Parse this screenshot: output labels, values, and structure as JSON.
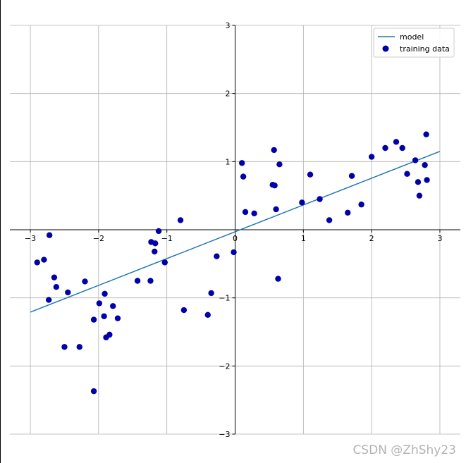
{
  "chart_data": {
    "type": "scatter",
    "title": "",
    "xlabel": "",
    "ylabel": "",
    "xlim": [
      -3.3,
      3.3
    ],
    "ylim": [
      -3,
      3
    ],
    "xticks": [
      -3,
      -2,
      -1,
      0,
      1,
      2,
      3
    ],
    "yticks": [
      -3,
      -2,
      -1,
      0,
      1,
      2,
      3
    ],
    "x_tick_labels": [
      "−3",
      "−2",
      "−1",
      "0",
      "1",
      "2",
      "3"
    ],
    "y_tick_labels": [
      "−3",
      "−2",
      "−1",
      "0",
      "1",
      "2",
      "3"
    ],
    "grid": true,
    "spines": "centered",
    "legend": {
      "position": "top-right",
      "entries": [
        "model",
        "training data"
      ]
    },
    "colors": {
      "model": "#1f77b4",
      "training_data": "#0000aa",
      "grid": "#b0b0b0"
    },
    "series": [
      {
        "name": "model",
        "kind": "line",
        "x": [
          -3,
          3
        ],
        "y": [
          -1.21,
          1.15
        ]
      },
      {
        "name": "training data",
        "kind": "scatter",
        "x": [
          -2.9,
          -2.8,
          -2.73,
          -2.72,
          -2.65,
          -2.62,
          -2.5,
          -2.45,
          -2.28,
          -2.2,
          -2.07,
          -2.07,
          -1.99,
          -1.92,
          -1.91,
          -1.89,
          -1.84,
          -1.79,
          -1.72,
          -1.43,
          -1.24,
          -1.23,
          -1.18,
          -1.17,
          -1.12,
          -1.03,
          -0.8,
          -0.75,
          -0.4,
          -0.35,
          -0.27,
          -0.02,
          0.1,
          0.12,
          0.15,
          0.28,
          0.55,
          0.57,
          0.58,
          0.6,
          0.63,
          0.65,
          0.98,
          1.1,
          1.24,
          1.38,
          1.65,
          1.71,
          1.85,
          2.0,
          2.2,
          2.36,
          2.45,
          2.52,
          2.64,
          2.68,
          2.7,
          2.78,
          2.8,
          2.81
        ],
        "y": [
          -0.48,
          -0.44,
          -1.03,
          -0.08,
          -0.7,
          -0.84,
          -1.72,
          -0.92,
          -1.72,
          -0.76,
          -1.32,
          -2.37,
          -1.08,
          -1.27,
          -0.94,
          -1.58,
          -1.54,
          -1.12,
          -1.3,
          -0.75,
          -0.75,
          -0.18,
          -0.32,
          -0.2,
          -0.02,
          -0.48,
          0.14,
          -1.18,
          -1.25,
          -0.93,
          -0.39,
          -0.33,
          0.98,
          0.78,
          0.26,
          0.24,
          0.66,
          1.17,
          0.65,
          0.3,
          -0.72,
          0.96,
          0.4,
          0.81,
          0.45,
          0.14,
          0.25,
          0.79,
          0.37,
          1.07,
          1.2,
          1.29,
          1.2,
          0.82,
          1.02,
          0.7,
          0.5,
          0.95,
          1.4,
          0.73
        ]
      }
    ]
  },
  "watermark": "CSDN @ZhShy23"
}
